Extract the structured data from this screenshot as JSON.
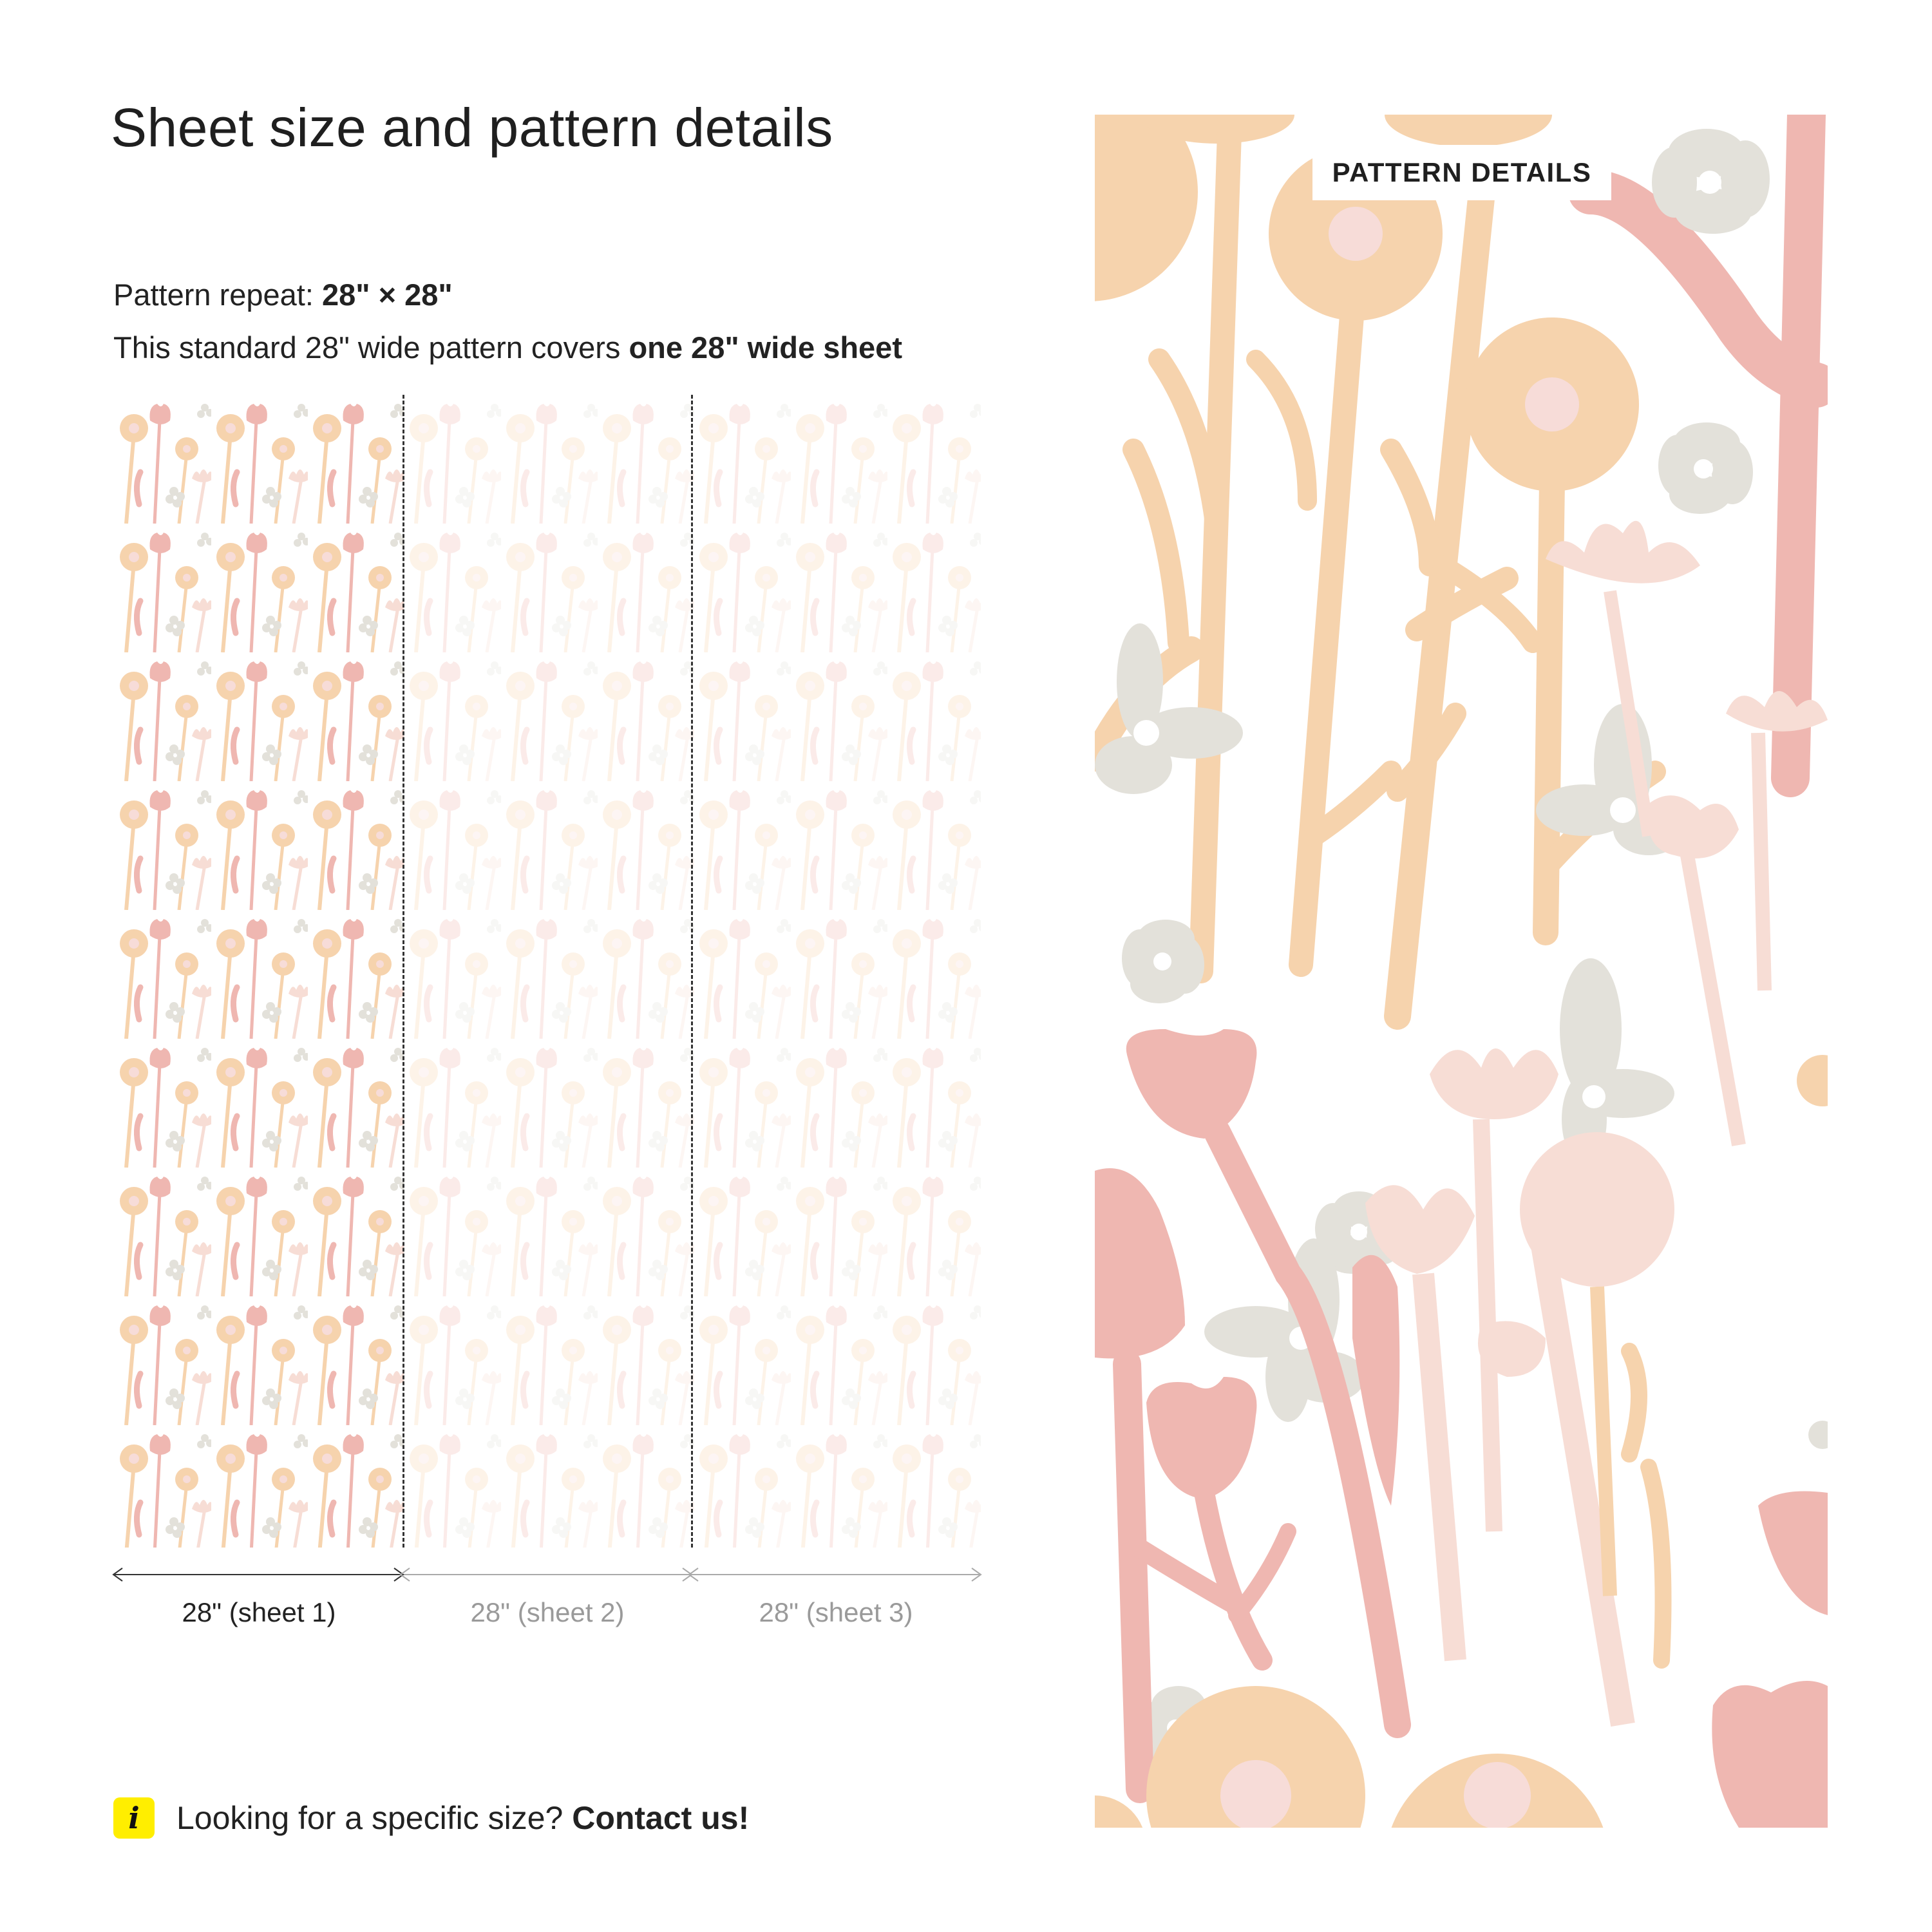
{
  "title": "Sheet size and pattern details",
  "repeat": {
    "label": "Pattern repeat: ",
    "value": "28\" × 28\""
  },
  "coverage": {
    "text": "This standard 28\" wide pattern covers ",
    "emphasis": "one 28\" wide sheet"
  },
  "sheets": [
    {
      "label": "28\" (sheet 1)",
      "active": true
    },
    {
      "label": "28\" (sheet 2)",
      "active": false
    },
    {
      "label": "28\" (sheet 3)",
      "active": false
    }
  ],
  "info": {
    "icon": "info-icon",
    "icon_glyph": "i",
    "text": "Looking for a specific size? ",
    "link": "Contact us!"
  },
  "pattern_details": {
    "label": "PATTERN DETAILS"
  },
  "colors": {
    "peach": "#f6d3ad",
    "pink": "#efb7b1",
    "blush": "#f7ddd5",
    "grey": "#e3e1da",
    "dot": "#f7dcd8",
    "active_text": "#222222",
    "inactive_text": "#9a9a9a",
    "info_yellow": "#ffee00"
  }
}
